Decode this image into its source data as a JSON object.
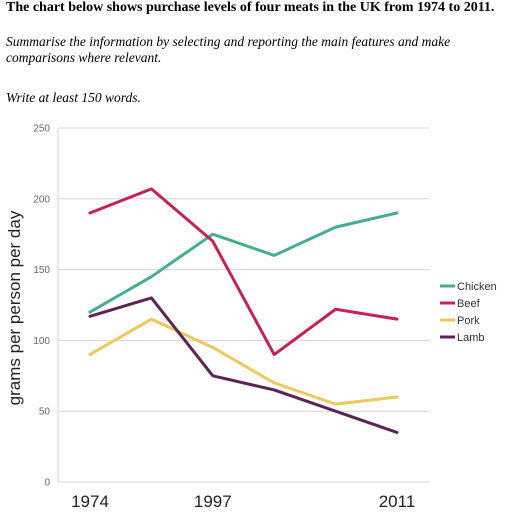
{
  "prompt": {
    "title": "The chart below shows purchase levels of four meats in the UK from 1974 to 2011.",
    "instruction": "Summarise the information by selecting and reporting the main features and make comparisons where relevant.",
    "word_count": "Write at least 150 words."
  },
  "chart_data": {
    "type": "line",
    "title": "",
    "xlabel": "",
    "ylabel": "grams per person per day",
    "x_points": 6,
    "x_tick_labels": [
      {
        "label": "1974",
        "index": 0
      },
      {
        "label": "1997",
        "index": 2
      },
      {
        "label": "2011",
        "index": 5
      }
    ],
    "ylim": [
      0,
      250
    ],
    "y_ticks": [
      0,
      50,
      100,
      150,
      200,
      250
    ],
    "grid": true,
    "legend_position": "right",
    "series": [
      {
        "name": "Chicken",
        "color": "#45ad93",
        "values": [
          120,
          145,
          175,
          160,
          180,
          190
        ]
      },
      {
        "name": "Beef",
        "color": "#c4234f",
        "values": [
          190,
          207,
          170,
          90,
          122,
          115
        ]
      },
      {
        "name": "Pork",
        "color": "#edc85a",
        "values": [
          90,
          115,
          95,
          70,
          55,
          60
        ]
      },
      {
        "name": "Lamb",
        "color": "#5e2356",
        "values": [
          117,
          130,
          75,
          65,
          50,
          35
        ]
      }
    ]
  }
}
